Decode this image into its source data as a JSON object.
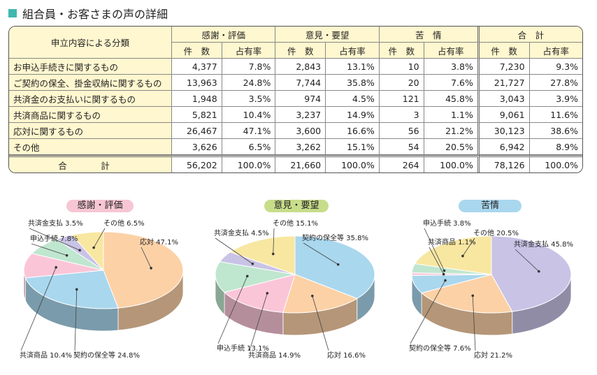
{
  "page_title": "組合員・お客さまの声の詳細",
  "table": {
    "header_category": "申立内容による分類",
    "groups": [
      "感謝・評価",
      "意見・要望",
      "苦　情",
      "合　計"
    ],
    "subheaders": [
      "件　数",
      "占有率"
    ],
    "rows": [
      {
        "category": "お申込手続きに関するもの",
        "cells": [
          "4,377",
          "7.8%",
          "2,843",
          "13.1%",
          "10",
          "3.8%",
          "7,230",
          "9.3%"
        ]
      },
      {
        "category": "ご契約の保全、掛金収納に関するもの",
        "cells": [
          "13,963",
          "24.8%",
          "7,744",
          "35.8%",
          "20",
          "7.6%",
          "21,727",
          "27.8%"
        ]
      },
      {
        "category": "共済金のお支払いに関するもの",
        "cells": [
          "1,948",
          "3.5%",
          "974",
          "4.5%",
          "121",
          "45.8%",
          "3,043",
          "3.9%"
        ]
      },
      {
        "category": "共済商品に関するもの",
        "cells": [
          "5,821",
          "10.4%",
          "3,237",
          "14.9%",
          "3",
          "1.1%",
          "9,061",
          "11.6%"
        ]
      },
      {
        "category": "応対に関するもの",
        "cells": [
          "26,467",
          "47.1%",
          "3,600",
          "16.6%",
          "56",
          "21.2%",
          "30,123",
          "38.6%"
        ]
      },
      {
        "category": "その他",
        "cells": [
          "3,626",
          "6.5%",
          "3,262",
          "15.1%",
          "54",
          "20.5%",
          "6,942",
          "8.9%"
        ]
      }
    ],
    "total": {
      "label": "合　計",
      "cells": [
        "56,202",
        "100.0%",
        "21,660",
        "100.0%",
        "264",
        "100.0%",
        "78,126",
        "100.0%"
      ]
    }
  },
  "chart_data": [
    {
      "type": "pie",
      "title": "感謝・評価",
      "title_color": "#f7c6d4",
      "slices": [
        {
          "label": "応対",
          "value": 47.1,
          "text": "応対 47.1%",
          "color": "#fcd1a6"
        },
        {
          "label": "契約の保全等",
          "value": 24.8,
          "text": "契約の保全等 24.8%",
          "color": "#a9d7ee"
        },
        {
          "label": "共済商品",
          "value": 10.4,
          "text": "共済商品 10.4%",
          "color": "#fbc5d8"
        },
        {
          "label": "申込手続",
          "value": 7.8,
          "text": "申込手続 7.8%",
          "color": "#bfe6cf"
        },
        {
          "label": "共済金支払",
          "value": 3.5,
          "text": "共済金支払 3.5%",
          "color": "#c9c3e6"
        },
        {
          "label": "その他",
          "value": 6.5,
          "text": "その他 6.5%",
          "color": "#f8e7a1"
        }
      ]
    },
    {
      "type": "pie",
      "title": "意見・要望",
      "title_color": "#c8dd8a",
      "slices": [
        {
          "label": "契約の保全等",
          "value": 35.8,
          "text": "契約の保全等 35.8%",
          "color": "#a9d7ee"
        },
        {
          "label": "応対",
          "value": 16.6,
          "text": "応対 16.6%",
          "color": "#fcd1a6"
        },
        {
          "label": "共済商品",
          "value": 14.9,
          "text": "共済商品 14.9%",
          "color": "#fbc5d8"
        },
        {
          "label": "申込手続",
          "value": 13.1,
          "text": "申込手続 13.1%",
          "color": "#bfe6cf"
        },
        {
          "label": "共済金支払",
          "value": 4.5,
          "text": "共済金支払 4.5%",
          "color": "#c9c3e6"
        },
        {
          "label": "その他",
          "value": 15.1,
          "text": "その他 15.1%",
          "color": "#f8e7a1"
        }
      ]
    },
    {
      "type": "pie",
      "title": "苦情",
      "title_color": "#a9d7ee",
      "slices": [
        {
          "label": "共済金支払",
          "value": 45.8,
          "text": "共済金支払 45.8%",
          "color": "#c9c3e6"
        },
        {
          "label": "応対",
          "value": 21.2,
          "text": "応対 21.2%",
          "color": "#fcd1a6"
        },
        {
          "label": "契約の保全等",
          "value": 7.6,
          "text": "契約の保全等 7.6%",
          "color": "#a9d7ee"
        },
        {
          "label": "共済商品",
          "value": 1.1,
          "text": "共済商品 1.1%",
          "color": "#fbc5d8"
        },
        {
          "label": "申込手続",
          "value": 3.8,
          "text": "申込手続 3.8%",
          "color": "#bfe6cf"
        },
        {
          "label": "その他",
          "value": 20.5,
          "text": "その他 20.5%",
          "color": "#f8e7a1"
        }
      ]
    }
  ]
}
